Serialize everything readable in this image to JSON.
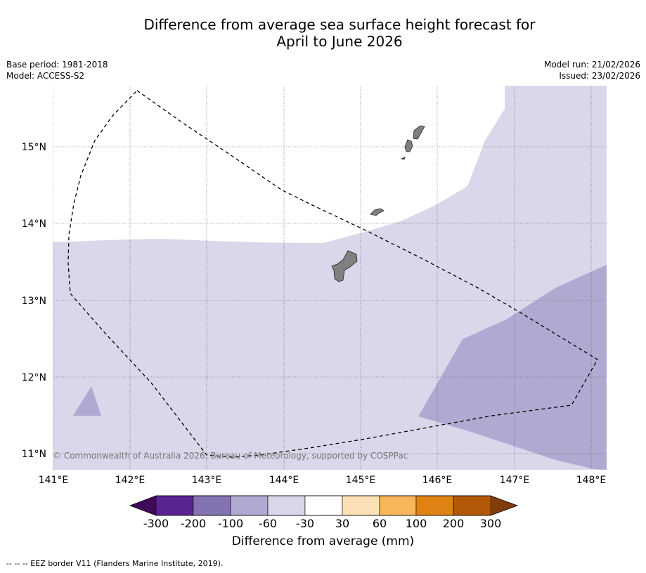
{
  "title": {
    "line1": "Difference from average sea surface height forecast for",
    "line2": "April to June 2026"
  },
  "meta": {
    "base_period": "Base period: 1981-2018",
    "model": "Model: ACCESS-S2",
    "model_run": "Model run: 21/02/2026",
    "issued": "Issued: 23/02/2026"
  },
  "map": {
    "copyright": "© Commonwealth of Australia 2026, Bureau of Meteorology, supported by COSPPac",
    "lon_labels": [
      "141°E",
      "142°E",
      "143°E",
      "144°E",
      "145°E",
      "146°E",
      "147°E",
      "148°E"
    ],
    "lat_labels": [
      "15°N",
      "14°N",
      "13°N",
      "12°N",
      "11°N"
    ],
    "colors": {
      "band_lightest": "#d8d8ea",
      "band_light": "#b0aad2",
      "land": "#808080",
      "eez_line": "#000000"
    },
    "eez_icon": "dashed-line-icon",
    "land_icon": "island-icon"
  },
  "colorbar": {
    "title": "Difference from average (mm)",
    "tick_labels": [
      "-300",
      "-200",
      "-100",
      "-60",
      "-30",
      "30",
      "60",
      "100",
      "200",
      "300"
    ],
    "colors": [
      "#3f0a58",
      "#5a2591",
      "#8373b1",
      "#b0aad2",
      "#d8d8ea",
      "#ffffff",
      "#fde0b5",
      "#f9b55a",
      "#e08114",
      "#b35806",
      "#7f3b08"
    ]
  },
  "footnote": "--  --  -- EEZ border V11 (Flanders Marine Institute, 2019)."
}
